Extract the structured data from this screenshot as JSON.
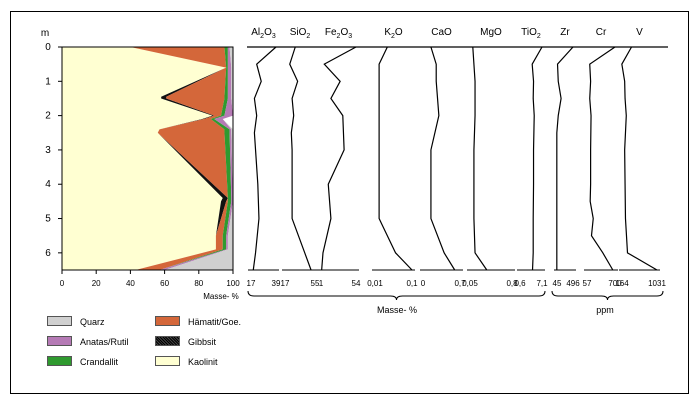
{
  "chart_data": {
    "type": "area",
    "depth_axis": {
      "label": "m",
      "ticks": [
        0,
        1,
        2,
        3,
        4,
        5,
        6
      ],
      "ylim": [
        0,
        6.5
      ]
    },
    "mineral_panel": {
      "xlabel": "Masse- %",
      "xticks": [
        0,
        20,
        40,
        60,
        80,
        100
      ],
      "xlim": [
        0,
        100
      ],
      "depth": [
        0,
        0.6,
        1.45,
        1.5,
        2,
        2.1,
        2.4,
        2.5,
        4.4,
        4.5,
        5.5,
        5.9,
        6.5
      ],
      "series": [
        {
          "name": "Kaolinit",
          "color": "#ffffd2",
          "values": [
            40,
            96,
            58,
            58,
            88,
            82,
            57,
            56,
            94,
            93,
            90,
            90,
            43
          ]
        },
        {
          "name": "Gibbsit",
          "color": "#111111",
          "values": [
            0,
            0,
            3,
            3,
            1,
            1,
            0,
            0,
            3,
            3,
            0,
            0,
            0
          ]
        },
        {
          "name": "Hämatit/Goe.",
          "color": "#d4673a",
          "values": [
            55,
            0,
            34,
            34,
            4,
            4,
            38,
            39,
            0,
            1,
            4,
            4,
            14
          ]
        },
        {
          "name": "Crandallit",
          "color": "#2f9a2f",
          "values": [
            2,
            1,
            2,
            2,
            2,
            2,
            3,
            3,
            2,
            2,
            2,
            2,
            0
          ]
        },
        {
          "name": "Anatas/Rutil",
          "color": "#b57ab5",
          "values": [
            1,
            2,
            2,
            2,
            5,
            5,
            1,
            1,
            1,
            1,
            1,
            1,
            3
          ]
        },
        {
          "name": "Quarz",
          "color": "#d0d0d0",
          "values": [
            2,
            1,
            1,
            1,
            0,
            0,
            1,
            1,
            0,
            0,
            3,
            3,
            40
          ]
        }
      ]
    },
    "profiles": [
      {
        "label_parts": [
          "Al",
          "2",
          "O",
          "3"
        ],
        "ticks": [
          "17",
          "39"
        ],
        "xlim": [
          17,
          39
        ],
        "depth": [
          0,
          0.5,
          1,
          1.5,
          2,
          2.5,
          3,
          4,
          5,
          6,
          6.5
        ],
        "values": [
          39,
          22,
          26,
          20,
          22,
          20,
          21,
          23,
          24,
          21,
          19
        ]
      },
      {
        "label_parts": [
          "SiO",
          "2"
        ],
        "ticks": [
          "17",
          "55"
        ],
        "xlim": [
          17,
          55
        ],
        "depth": [
          0,
          0.5,
          1,
          1.5,
          2,
          2.5,
          3,
          4,
          5,
          6,
          6.5
        ],
        "values": [
          30,
          23,
          33,
          26,
          28,
          25,
          26,
          26,
          26,
          42,
          50
        ]
      },
      {
        "label_parts": [
          "Fe",
          "2",
          "O",
          "3"
        ],
        "ticks": [
          "1",
          "54"
        ],
        "xlim": [
          1,
          54
        ],
        "depth": [
          0,
          0.5,
          1,
          1.5,
          2,
          2.5,
          3,
          4,
          5,
          6,
          6.5
        ],
        "values": [
          54,
          6,
          30,
          16,
          34,
          35,
          36,
          12,
          16,
          4,
          2
        ]
      },
      {
        "label_parts": [
          "K",
          "2",
          "O"
        ],
        "ticks": [
          "0,01",
          "0,1"
        ],
        "xlim": [
          0.01,
          0.1
        ],
        "depth": [
          0,
          0.5,
          1,
          2,
          3,
          4,
          5,
          6,
          6.5
        ],
        "values": [
          0.04,
          0.02,
          0.02,
          0.02,
          0.02,
          0.02,
          0.02,
          0.06,
          0.1
        ]
      },
      {
        "label_parts": [
          "CaO"
        ],
        "ticks": [
          "0",
          "0,7"
        ],
        "xlim": [
          0,
          0.7
        ],
        "depth": [
          0,
          0.5,
          1,
          2,
          3,
          4,
          5,
          6,
          6.5
        ],
        "values": [
          0.15,
          0.25,
          0.25,
          0.3,
          0.15,
          0.15,
          0.15,
          0.4,
          0.6
        ]
      },
      {
        "label_parts": [
          "MgO"
        ],
        "ticks": [
          "0,05",
          "0,8"
        ],
        "xlim": [
          0.05,
          0.8
        ],
        "depth": [
          0,
          0.5,
          1,
          2,
          3,
          4,
          5,
          6,
          6.5
        ],
        "values": [
          0.1,
          0.12,
          0.14,
          0.14,
          0.12,
          0.12,
          0.12,
          0.14,
          0.35
        ]
      },
      {
        "label_parts": [
          "TiO",
          "2"
        ],
        "ticks": [
          "0,6",
          "7,1"
        ],
        "xlim": [
          0.6,
          7.1
        ],
        "depth": [
          0,
          0.5,
          1,
          1.5,
          2,
          3,
          4,
          5,
          6,
          6.5
        ],
        "values": [
          7.1,
          4.2,
          4.6,
          4.5,
          4.8,
          4.6,
          4.6,
          4.5,
          4.5,
          4.3
        ]
      },
      {
        "label_parts": [
          "Zr"
        ],
        "ticks": [
          "45",
          "496"
        ],
        "xlim": [
          45,
          496
        ],
        "depth": [
          0,
          0.5,
          1,
          1.5,
          2,
          2.5,
          4,
          5,
          6,
          6.5
        ],
        "values": [
          496,
          60,
          80,
          160,
          80,
          40,
          40,
          40,
          40,
          40
        ]
      },
      {
        "label_parts": [
          "Cr"
        ],
        "ticks": [
          "57",
          "700"
        ],
        "xlim": [
          57,
          700
        ],
        "depth": [
          0,
          0.5,
          1,
          1.5,
          2,
          3,
          4,
          4.5,
          5,
          5.5,
          6,
          6.5
        ],
        "values": [
          700,
          120,
          140,
          120,
          150,
          140,
          140,
          130,
          200,
          160,
          420,
          650
        ]
      },
      {
        "label_parts": [
          "V"
        ],
        "ticks": [
          "164",
          "1031"
        ],
        "xlim": [
          164,
          1031
        ],
        "depth": [
          0,
          0.5,
          1,
          1.5,
          2,
          3,
          4,
          5,
          6,
          6.5
        ],
        "values": [
          400,
          160,
          230,
          240,
          270,
          230,
          240,
          250,
          300,
          1031
        ]
      }
    ],
    "unit_labels": {
      "mass": "Masse- %",
      "ppm": "ppm"
    }
  },
  "legend": [
    {
      "name": "Quarz",
      "color": "#d0d0d0"
    },
    {
      "name": "Hämatit/Goe.",
      "color": "#d4673a"
    },
    {
      "name": "Anatas/Rutil",
      "color": "#b57ab5"
    },
    {
      "name": "Gibbsit",
      "color": "#111111"
    },
    {
      "name": "Crandallit",
      "color": "#2f9a2f"
    },
    {
      "name": "Kaolinit",
      "color": "#ffffd2"
    }
  ]
}
